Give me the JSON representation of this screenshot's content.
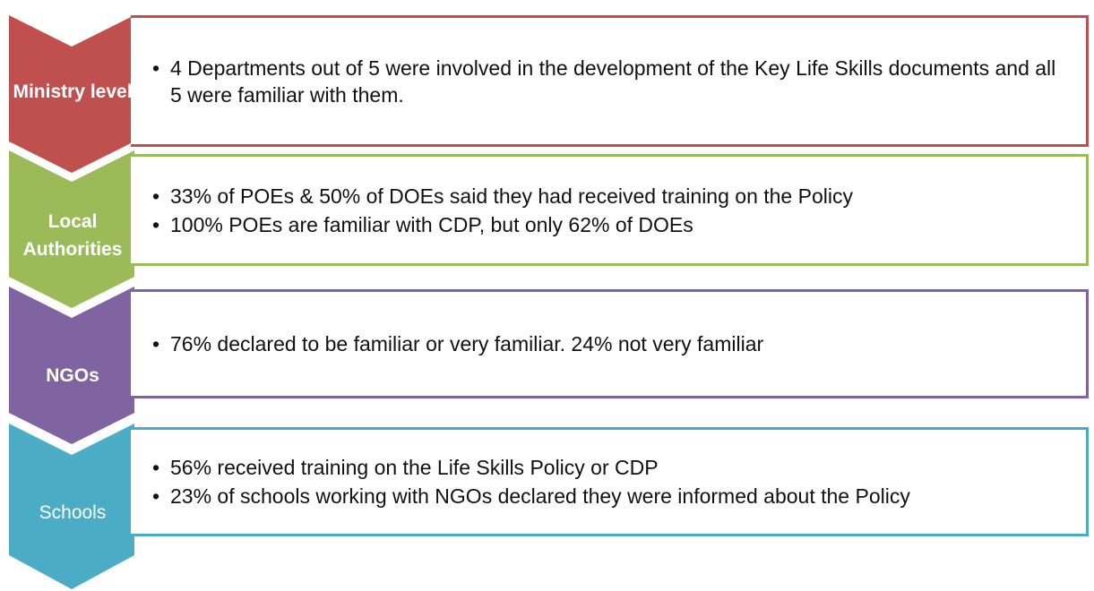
{
  "rows": [
    {
      "label": "Ministry level",
      "bullets": [
        "4 Departments out of 5 were involved in the development of the Key Life Skills documents and all 5 were familiar with them."
      ]
    },
    {
      "label": "Local Authorities",
      "bullets": [
        "33% of POEs & 50% of DOEs said they had received training on the Policy",
        "100% POEs are familiar with CDP, but only 62% of DOEs"
      ]
    },
    {
      "label": "NGOs",
      "bullets": [
        "76%  declared to be familiar or very familiar. 24% not very familiar"
      ]
    },
    {
      "label": "Schools",
      "bullets": [
        "56%  received training on the Life Skills Policy or CDP",
        "23% of schools working with NGOs declared they were informed about the Policy"
      ]
    }
  ]
}
